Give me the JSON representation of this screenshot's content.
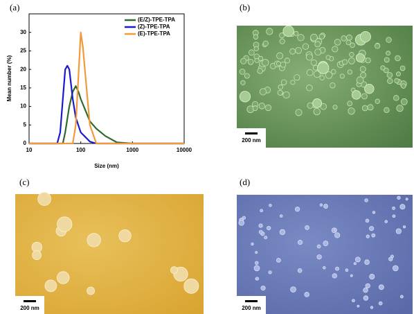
{
  "panel_labels": [
    "(a)",
    "(b)",
    "(c)",
    "(d)"
  ],
  "scale_bars": [
    "200 nm",
    "200 nm",
    "200 nm"
  ],
  "chart_data": {
    "type": "line",
    "xlabel": "Size (nm)",
    "ylabel": "Mean number (%)",
    "xscale": "log",
    "xlim": [
      10,
      10000
    ],
    "xticks": [
      10,
      100,
      1000,
      10000
    ],
    "ylim": [
      0,
      35
    ],
    "yticks": [
      0,
      5,
      10,
      15,
      20,
      25,
      30
    ],
    "grid": false,
    "legend": "upper right",
    "series": [
      {
        "name": "(E/Z)-TPE-TPA",
        "color": "#2d6a2d",
        "x": [
          10,
          45,
          50,
          60,
          70,
          80,
          90,
          100,
          150,
          200,
          300,
          500,
          1000,
          10000
        ],
        "values": [
          0,
          0,
          3,
          10,
          14,
          15.5,
          14,
          12,
          6,
          4,
          2,
          0.3,
          0,
          0
        ]
      },
      {
        "name": "(Z)-TPE-TPA",
        "color": "#1a1acc",
        "x": [
          10,
          35,
          40,
          45,
          50,
          55,
          60,
          70,
          80,
          100,
          150,
          200,
          10000
        ],
        "values": [
          0,
          0,
          3,
          12,
          20,
          21,
          20,
          12,
          7,
          3,
          0.5,
          0,
          0
        ]
      },
      {
        "name": "(E)-TPE-TPA",
        "color": "#f2993a",
        "x": [
          10,
          70,
          80,
          90,
          100,
          110,
          120,
          150,
          200,
          10000
        ],
        "values": [
          0,
          0,
          5,
          18,
          30,
          26,
          20,
          5,
          0,
          0
        ]
      }
    ]
  }
}
